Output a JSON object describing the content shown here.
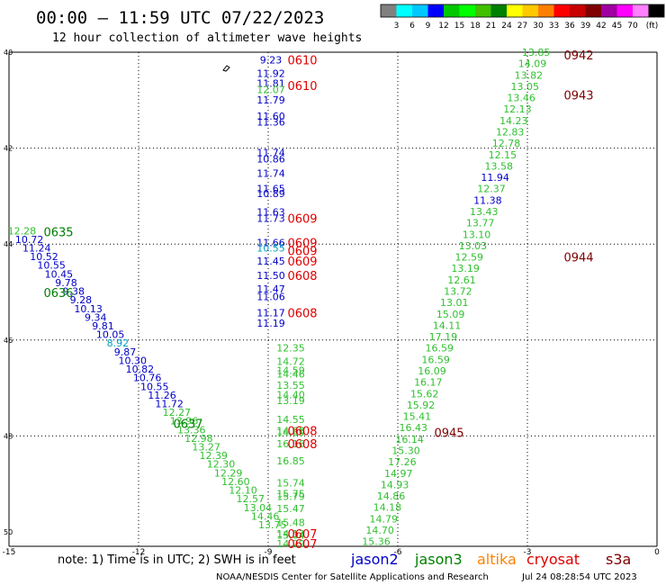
{
  "title": "00:00 – 11:59 UTC 07/22/2023",
  "subtitle": "12 hour collection of altimeter wave heights",
  "colorbar": {
    "colors": [
      "#808080",
      "#00ffff",
      "#00c8ff",
      "#0000ff",
      "#00c800",
      "#00ff00",
      "#40c000",
      "#008000",
      "#ffff00",
      "#ffc800",
      "#ff8000",
      "#ff0000",
      "#c80000",
      "#800000",
      "#a000a0",
      "#ff00ff",
      "#ff80ff",
      "#000000"
    ],
    "labels": [
      "3",
      "6",
      "9",
      "12",
      "15",
      "18",
      "21",
      "24",
      "27",
      "30",
      "33",
      "36",
      "39",
      "42",
      "45",
      "70"
    ],
    "unit": "(ft)"
  },
  "axis": {
    "x_ticks": [
      "-15",
      "-12",
      "-9",
      "-6",
      "-3",
      "0"
    ],
    "y_ticks": [
      "40",
      "42",
      "44",
      "46",
      "48",
      "50"
    ]
  },
  "colors": {
    "jason2": "#0000c8",
    "jason3": "#008000",
    "altika": "#ff8000",
    "cryosat": "#e00000",
    "s3a": "#800000",
    "light_green": "#30c030",
    "cyan": "#00a0c0"
  },
  "note": "note:  1) Time is in UTC; 2) SWH is in feet",
  "legend": [
    {
      "name": "jason2",
      "color": "#0000c8"
    },
    {
      "name": "jason3",
      "color": "#008000"
    },
    {
      "name": "altika",
      "color": "#ff8000"
    },
    {
      "name": "cryosat",
      "color": "#e00000"
    },
    {
      "name": "s3a",
      "color": "#800000"
    }
  ],
  "footer": "NOAA/NESDIS Center for Satellite Applications and Research",
  "timestamp": "Jul 24 08:28:54 UTC 2023",
  "track_a": [
    {
      "lon": -9,
      "lat": 40.16,
      "v": "9.23",
      "c": "blue"
    },
    {
      "lon": -9,
      "lat": 40.44,
      "v": "11.92",
      "c": "blue"
    },
    {
      "lon": -9,
      "lat": 40.65,
      "v": "11.81",
      "c": "blue"
    },
    {
      "lon": -9,
      "lat": 40.78,
      "v": "12.07",
      "c": "green"
    },
    {
      "lon": -9,
      "lat": 40.99,
      "v": "11.79",
      "c": "blue"
    },
    {
      "lon": -9,
      "lat": 41.33,
      "v": "11.60",
      "c": "blue"
    },
    {
      "lon": -9,
      "lat": 41.45,
      "v": "11.36",
      "c": "blue"
    },
    {
      "lon": -9,
      "lat": 42.09,
      "v": "11.74",
      "c": "blue"
    },
    {
      "lon": -9,
      "lat": 42.22,
      "v": "10.86",
      "c": "blue"
    },
    {
      "lon": -9,
      "lat": 42.52,
      "v": "11.74",
      "c": "blue"
    },
    {
      "lon": -9,
      "lat": 42.84,
      "v": "11.65",
      "c": "blue"
    },
    {
      "lon": -9,
      "lat": 42.95,
      "v": "10.89",
      "c": "blue"
    },
    {
      "lon": -9,
      "lat": 43.33,
      "v": "11.63",
      "c": "blue"
    },
    {
      "lon": -9,
      "lat": 43.46,
      "v": "11.73",
      "c": "blue"
    },
    {
      "lon": -9,
      "lat": 43.97,
      "v": "11.66",
      "c": "blue"
    },
    {
      "lon": -9,
      "lat": 44.08,
      "v": "10.55",
      "c": "cyan"
    },
    {
      "lon": -9,
      "lat": 44.35,
      "v": "11.45",
      "c": "blue"
    },
    {
      "lon": -9,
      "lat": 44.65,
      "v": "11.50",
      "c": "blue"
    },
    {
      "lon": -9,
      "lat": 44.93,
      "v": "11.47",
      "c": "blue"
    },
    {
      "lon": -9,
      "lat": 45.09,
      "v": "11.06",
      "c": "blue"
    },
    {
      "lon": -9,
      "lat": 45.43,
      "v": "11.17",
      "c": "blue"
    },
    {
      "lon": -9,
      "lat": 45.65,
      "v": "11.19",
      "c": "blue"
    },
    {
      "lon": -9,
      "lat": 46.16,
      "v": "12.35",
      "c": "green"
    },
    {
      "lon": -9,
      "lat": 46.44,
      "v": "14.72",
      "c": "green"
    },
    {
      "lon": -9,
      "lat": 46.63,
      "v": "14.59",
      "c": "green"
    },
    {
      "lon": -9,
      "lat": 46.71,
      "v": "14.46",
      "c": "green"
    },
    {
      "lon": -9,
      "lat": 46.94,
      "v": "13.55",
      "c": "green"
    },
    {
      "lon": -9,
      "lat": 47.14,
      "v": "14.40",
      "c": "green"
    },
    {
      "lon": -9,
      "lat": 47.26,
      "v": "13.19",
      "c": "green"
    },
    {
      "lon": -9,
      "lat": 47.65,
      "v": "14.55",
      "c": "green"
    },
    {
      "lon": -9,
      "lat": 47.89,
      "v": "14.68",
      "c": "green"
    },
    {
      "lon": -9,
      "lat": 47.93,
      "v": "14.69",
      "c": "green"
    },
    {
      "lon": -9,
      "lat": 48.16,
      "v": "16.16",
      "c": "green"
    },
    {
      "lon": -9,
      "lat": 48.52,
      "v": "16.85",
      "c": "green"
    },
    {
      "lon": -9,
      "lat": 48.98,
      "v": "15.74",
      "c": "green"
    },
    {
      "lon": -9,
      "lat": 49.2,
      "v": "15.75",
      "c": "green"
    },
    {
      "lon": -9,
      "lat": 49.26,
      "v": "15.79",
      "c": "green"
    },
    {
      "lon": -9,
      "lat": 49.51,
      "v": "15.47",
      "c": "green"
    },
    {
      "lon": -9,
      "lat": 49.8,
      "v": "15.48",
      "c": "green"
    },
    {
      "lon": -9,
      "lat": 50.07,
      "v": "15.04",
      "c": "green"
    },
    {
      "lon": -9,
      "lat": 50.04,
      "v": "14.13",
      "c": "green"
    },
    {
      "lon": -9,
      "lat": 50.24,
      "v": "14.29",
      "c": "green"
    }
  ],
  "track_b": [
    {
      "v": "12.28",
      "c": "green"
    },
    {
      "v": "10.72",
      "c": "blue"
    },
    {
      "v": "11.24",
      "c": "blue"
    },
    {
      "v": "10.52",
      "c": "blue"
    },
    {
      "v": "10.55",
      "c": "blue"
    },
    {
      "v": "10.45",
      "c": "blue"
    },
    {
      "v": "9.78",
      "c": "blue"
    },
    {
      "v": "9.38",
      "c": "blue"
    },
    {
      "v": "9.28",
      "c": "blue"
    },
    {
      "v": "10.13",
      "c": "blue"
    },
    {
      "v": "9.34",
      "c": "blue"
    },
    {
      "v": "9.81",
      "c": "blue"
    },
    {
      "v": "10.05",
      "c": "blue"
    },
    {
      "v": "8.92",
      "c": "cyan"
    },
    {
      "v": "9.87",
      "c": "blue"
    },
    {
      "v": "10.30",
      "c": "blue"
    },
    {
      "v": "10.82",
      "c": "blue"
    },
    {
      "v": "10.76",
      "c": "blue"
    },
    {
      "v": "10.55",
      "c": "blue"
    },
    {
      "v": "11.26",
      "c": "blue"
    },
    {
      "v": "11.72",
      "c": "blue"
    },
    {
      "v": "12.27",
      "c": "green"
    },
    {
      "v": "13.96",
      "c": "green"
    },
    {
      "v": "13.36",
      "c": "green"
    },
    {
      "v": "12.98",
      "c": "green"
    },
    {
      "v": "13.27",
      "c": "green"
    },
    {
      "v": "12.39",
      "c": "green"
    },
    {
      "v": "12.30",
      "c": "green"
    },
    {
      "v": "12.29",
      "c": "green"
    },
    {
      "v": "12.60",
      "c": "green"
    },
    {
      "v": "12.10",
      "c": "green"
    },
    {
      "v": "12.57",
      "c": "green"
    },
    {
      "v": "13.04",
      "c": "green"
    },
    {
      "v": "14.46",
      "c": "green"
    },
    {
      "v": "13.75",
      "c": "green"
    }
  ],
  "track_c": [
    {
      "v": "15.36",
      "c": "green"
    },
    {
      "v": "14.70",
      "c": "green"
    },
    {
      "v": "14.79",
      "c": "green"
    },
    {
      "v": "14.18",
      "c": "green"
    },
    {
      "v": "14.86",
      "c": "green"
    },
    {
      "v": "14.93",
      "c": "green"
    },
    {
      "v": "14.97",
      "c": "green"
    },
    {
      "v": "17.26",
      "c": "green"
    },
    {
      "v": "15.30",
      "c": "green"
    },
    {
      "v": "16.14",
      "c": "green"
    },
    {
      "v": "16.43",
      "c": "green"
    },
    {
      "v": "15.41",
      "c": "green"
    },
    {
      "v": "15.92",
      "c": "green"
    },
    {
      "v": "15.62",
      "c": "green"
    },
    {
      "v": "16.17",
      "c": "green"
    },
    {
      "v": "16.09",
      "c": "green"
    },
    {
      "v": "16.59",
      "c": "green"
    },
    {
      "v": "16.59",
      "c": "green"
    },
    {
      "v": "17.19",
      "c": "green"
    },
    {
      "v": "14.11",
      "c": "green"
    },
    {
      "v": "15.09",
      "c": "green"
    },
    {
      "v": "13.01",
      "c": "green"
    },
    {
      "v": "13.72",
      "c": "green"
    },
    {
      "v": "12.61",
      "c": "green"
    },
    {
      "v": "13.19",
      "c": "green"
    },
    {
      "v": "12.59",
      "c": "green"
    },
    {
      "v": "13.03",
      "c": "green"
    },
    {
      "v": "13.10",
      "c": "green"
    },
    {
      "v": "13.77",
      "c": "green"
    },
    {
      "v": "13.43",
      "c": "green"
    },
    {
      "v": "11.38",
      "c": "blue"
    },
    {
      "v": "12.37",
      "c": "green"
    },
    {
      "v": "11.94",
      "c": "blue"
    },
    {
      "v": "13.58",
      "c": "green"
    },
    {
      "v": "12.15",
      "c": "green"
    },
    {
      "v": "12.78",
      "c": "green"
    },
    {
      "v": "12.83",
      "c": "green"
    },
    {
      "v": "14.23",
      "c": "green"
    },
    {
      "v": "12.13",
      "c": "green"
    },
    {
      "v": "13.46",
      "c": "green"
    },
    {
      "v": "13.05",
      "c": "green"
    },
    {
      "v": "13.82",
      "c": "green"
    },
    {
      "v": "14.09",
      "c": "green"
    },
    {
      "v": "13.85",
      "c": "green"
    }
  ],
  "times": [
    {
      "t": "0610",
      "c": "red",
      "lon": -9,
      "lat": 40.16
    },
    {
      "t": "0610",
      "c": "red",
      "lon": -9,
      "lat": 40.69
    },
    {
      "t": "0609",
      "c": "red",
      "lon": -9,
      "lat": 43.46
    },
    {
      "t": "0609",
      "c": "red",
      "lon": -9,
      "lat": 43.97
    },
    {
      "t": "0609",
      "c": "red",
      "lon": -9,
      "lat": 44.14
    },
    {
      "t": "0609",
      "c": "red",
      "lon": -9,
      "lat": 44.35
    },
    {
      "t": "0608",
      "c": "red",
      "lon": -9,
      "lat": 44.65
    },
    {
      "t": "0608",
      "c": "red",
      "lon": -9,
      "lat": 45.43
    },
    {
      "t": "0608",
      "c": "red",
      "lon": -9,
      "lat": 47.89
    },
    {
      "t": "0608",
      "c": "red",
      "lon": -9,
      "lat": 48.16
    },
    {
      "t": "0607",
      "c": "red",
      "lon": -9,
      "lat": 50.04
    },
    {
      "t": "0607",
      "c": "red",
      "lon": -9,
      "lat": 50.24
    },
    {
      "t": "0635",
      "c": "darkgreen",
      "lon": -15,
      "lat": 43.74
    },
    {
      "t": "0636",
      "c": "darkgreen",
      "lon": -15,
      "lat": 45.01
    },
    {
      "t": "0637",
      "c": "darkgreen",
      "lon": -12,
      "lat": 47.74
    },
    {
      "t": "0942",
      "c": "darkred",
      "lon": -3,
      "lat": 40.06
    },
    {
      "t": "0943",
      "c": "darkred",
      "lon": -3,
      "lat": 40.89
    },
    {
      "t": "0944",
      "c": "darkred",
      "lon": -3,
      "lat": 44.27
    },
    {
      "t": "0945",
      "c": "darkred",
      "lon": -6,
      "lat": 47.93
    }
  ]
}
